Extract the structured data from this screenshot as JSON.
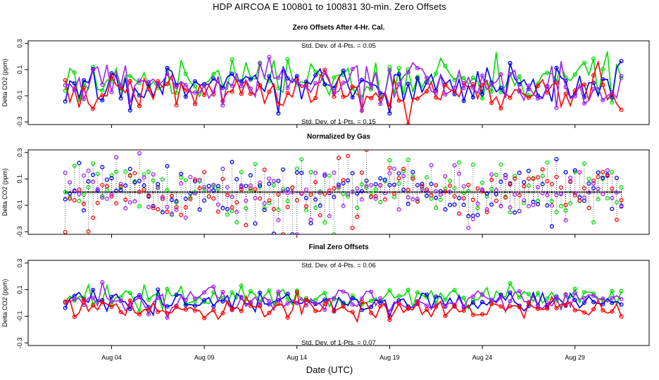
{
  "title": "HDP    AIRCOA E    100801 to 100831    30-min. Zero Offsets",
  "xlabel": "Date (UTC)",
  "colors": {
    "red": "#ff0000",
    "green": "#00dd00",
    "blue": "#0000ee",
    "purple": "#a020f0",
    "black": "#000000"
  },
  "chart_data": [
    {
      "type": "line",
      "title": "Zero Offsets After 4-Hr. Cal.",
      "ylabel": "Delta CO2 (ppm)",
      "ylim": [
        -0.32,
        0.32
      ],
      "yticks": [
        -0.3,
        -0.1,
        0.1,
        0.3
      ],
      "ytick_labels": [
        "-0.3",
        "-0.1",
        "0.1",
        "0.3"
      ],
      "xlim": [
        -1.5,
        32.0
      ],
      "xticks": [
        3,
        8,
        13,
        18,
        23,
        28
      ],
      "xtick_labels": [
        "Aug 04",
        "Aug 09",
        "Aug 14",
        "Aug 19",
        "Aug 24",
        "Aug 29"
      ],
      "annotations": [
        "Std. Dev. of 4-Pts. = 0.05",
        "Std. Dev. of 1-Pts. = 0.15"
      ],
      "series": [
        {
          "name": "green",
          "color": "green",
          "mean": 0.02,
          "sd": 0.09
        },
        {
          "name": "blue",
          "color": "blue",
          "mean": -0.02,
          "sd": 0.08
        },
        {
          "name": "red",
          "color": "red",
          "mean": -0.07,
          "sd": 0.08
        },
        {
          "name": "purple",
          "color": "purple",
          "mean": 0.0,
          "sd": 0.08
        }
      ]
    },
    {
      "type": "scatter",
      "title": "Normalized by Gas",
      "ylabel": "Delta CO2 (ppm)",
      "ylim": [
        -0.32,
        0.32
      ],
      "yticks": [
        -0.3,
        -0.1,
        0.1,
        0.3
      ],
      "ytick_labels": [
        "-0.3",
        "-0.1",
        "0.1",
        "0.3"
      ],
      "xlim": [
        -1.5,
        32.0
      ],
      "xticks": [
        3,
        8,
        13,
        18,
        23,
        28
      ],
      "xtick_labels": [
        "Aug 04",
        "Aug 09",
        "Aug 14",
        "Aug 19",
        "Aug 24",
        "Aug 29"
      ],
      "annotations": [],
      "reference_line": 0.0,
      "series": [
        {
          "name": "green",
          "color": "green",
          "mean": 0.0,
          "sd": 0.12
        },
        {
          "name": "blue",
          "color": "blue",
          "mean": 0.0,
          "sd": 0.12
        },
        {
          "name": "red",
          "color": "red",
          "mean": 0.0,
          "sd": 0.12
        },
        {
          "name": "purple",
          "color": "purple",
          "mean": 0.0,
          "sd": 0.12
        }
      ]
    },
    {
      "type": "line",
      "title": "Final Zero Offsets",
      "ylabel": "Delta CO2 (ppm)",
      "ylim": [
        -0.32,
        0.32
      ],
      "yticks": [
        -0.3,
        -0.1,
        0.1,
        0.3
      ],
      "ytick_labels": [
        "-0.3",
        "-0.1",
        "0.1",
        "0.3"
      ],
      "xlim": [
        -1.5,
        32.0
      ],
      "xticks": [
        3,
        8,
        13,
        18,
        23,
        28
      ],
      "xtick_labels": [
        "Aug 04",
        "Aug 09",
        "Aug 14",
        "Aug 19",
        "Aug 24",
        "Aug 29"
      ],
      "annotations": [
        "Std. Dev. of 4-Pts. = 0.06",
        "Std. Dev. of 1-Pts. = 0.07"
      ],
      "series": [
        {
          "name": "green",
          "color": "green",
          "mean": 0.04,
          "sd": 0.04
        },
        {
          "name": "blue",
          "color": "blue",
          "mean": 0.01,
          "sd": 0.04
        },
        {
          "name": "purple",
          "color": "purple",
          "mean": 0.02,
          "sd": 0.04
        },
        {
          "name": "red",
          "color": "red",
          "mean": -0.04,
          "sd": 0.04
        }
      ]
    }
  ]
}
